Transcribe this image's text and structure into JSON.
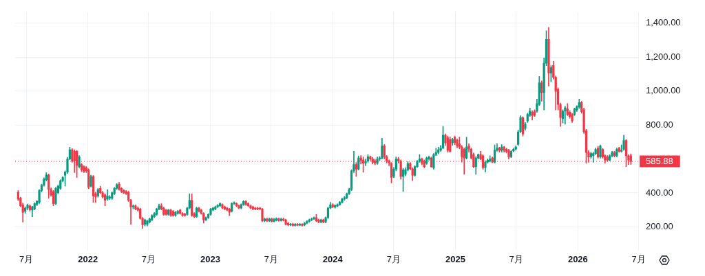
{
  "chart_data": {
    "type": "candlestick",
    "x": [
      "2021-06-07",
      "2021-06-14",
      "2021-06-21",
      "2021-06-28",
      "2021-07-05",
      "2021-07-12",
      "2021-07-19",
      "2021-07-26",
      "2021-08-02",
      "2021-08-09",
      "2021-08-16",
      "2021-08-23",
      "2021-08-30",
      "2021-09-06",
      "2021-09-13",
      "2021-09-20",
      "2021-09-27",
      "2021-10-04",
      "2021-10-11",
      "2021-10-18",
      "2021-10-25",
      "2021-11-01",
      "2021-11-08",
      "2021-11-15",
      "2021-11-22",
      "2021-11-29",
      "2021-12-06",
      "2021-12-13",
      "2021-12-20",
      "2021-12-27",
      "2022-01-03",
      "2022-01-10",
      "2022-01-17",
      "2022-01-24",
      "2022-01-31",
      "2022-02-07",
      "2022-02-14",
      "2022-02-21",
      "2022-02-28",
      "2022-03-07",
      "2022-03-14",
      "2022-03-21",
      "2022-03-28",
      "2022-04-04",
      "2022-04-11",
      "2022-04-18",
      "2022-04-25",
      "2022-05-02",
      "2022-05-09",
      "2022-05-16",
      "2022-05-23",
      "2022-05-30",
      "2022-06-06",
      "2022-06-13",
      "2022-06-20",
      "2022-06-27",
      "2022-07-04",
      "2022-07-11",
      "2022-07-18",
      "2022-07-25",
      "2022-08-01",
      "2022-08-08",
      "2022-08-15",
      "2022-08-22",
      "2022-08-29",
      "2022-09-05",
      "2022-09-12",
      "2022-09-19",
      "2022-09-26",
      "2022-10-03",
      "2022-10-10",
      "2022-10-17",
      "2022-10-24",
      "2022-10-31",
      "2022-11-07",
      "2022-11-14",
      "2022-11-21",
      "2022-11-28",
      "2022-12-05",
      "2022-12-12",
      "2022-12-19",
      "2022-12-26",
      "2023-01-02",
      "2023-01-09",
      "2023-01-16",
      "2023-01-23",
      "2023-01-30",
      "2023-02-06",
      "2023-02-13",
      "2023-02-20",
      "2023-02-27",
      "2023-03-06",
      "2023-03-13",
      "2023-03-20",
      "2023-03-27",
      "2023-04-03",
      "2023-04-10",
      "2023-04-17",
      "2023-04-24",
      "2023-05-01",
      "2023-05-08",
      "2023-05-15",
      "2023-05-22",
      "2023-05-29",
      "2023-06-05",
      "2023-06-12",
      "2023-06-19",
      "2023-06-26",
      "2023-07-03",
      "2023-07-10",
      "2023-07-17",
      "2023-07-24",
      "2023-07-31",
      "2023-08-07",
      "2023-08-14",
      "2023-08-21",
      "2023-08-28",
      "2023-09-04",
      "2023-09-11",
      "2023-09-18",
      "2023-09-25",
      "2023-10-02",
      "2023-10-09",
      "2023-10-16",
      "2023-10-23",
      "2023-10-30",
      "2023-11-06",
      "2023-11-13",
      "2023-11-20",
      "2023-11-27",
      "2023-12-04",
      "2023-12-11",
      "2023-12-18",
      "2023-12-25",
      "2024-01-01",
      "2024-01-08",
      "2024-01-15",
      "2024-01-22",
      "2024-01-29",
      "2024-02-05",
      "2024-02-12",
      "2024-02-19",
      "2024-02-26",
      "2024-03-04",
      "2024-03-11",
      "2024-03-18",
      "2024-03-25",
      "2024-04-01",
      "2024-04-08",
      "2024-04-15",
      "2024-04-22",
      "2024-04-29",
      "2024-05-06",
      "2024-05-13",
      "2024-05-20",
      "2024-05-27",
      "2024-06-03",
      "2024-06-10",
      "2024-06-17",
      "2024-06-24",
      "2024-07-01",
      "2024-07-08",
      "2024-07-15",
      "2024-07-22",
      "2024-07-29",
      "2024-08-05",
      "2024-08-12",
      "2024-08-19",
      "2024-08-26",
      "2024-09-02",
      "2024-09-09",
      "2024-09-16",
      "2024-09-23",
      "2024-09-30",
      "2024-10-07",
      "2024-10-14",
      "2024-10-21",
      "2024-10-28",
      "2024-11-04",
      "2024-11-11",
      "2024-11-18",
      "2024-11-25",
      "2024-12-02",
      "2024-12-09",
      "2024-12-16",
      "2024-12-23",
      "2024-12-30",
      "2025-01-06",
      "2025-01-13",
      "2025-01-20",
      "2025-01-27",
      "2025-02-03",
      "2025-02-10",
      "2025-02-17",
      "2025-02-24",
      "2025-03-03",
      "2025-03-10",
      "2025-03-17",
      "2025-03-24",
      "2025-03-31",
      "2025-04-07",
      "2025-04-14",
      "2025-04-21",
      "2025-04-28",
      "2025-05-05",
      "2025-05-12",
      "2025-05-19",
      "2025-05-26",
      "2025-06-02",
      "2025-06-09",
      "2025-06-16",
      "2025-06-23",
      "2025-06-30",
      "2025-07-07",
      "2025-07-14",
      "2025-07-21",
      "2025-07-28",
      "2025-08-04",
      "2025-08-11",
      "2025-08-18",
      "2025-08-25",
      "2025-09-01",
      "2025-09-08",
      "2025-09-15",
      "2025-09-22",
      "2025-09-29",
      "2025-10-06",
      "2025-10-13",
      "2025-10-20",
      "2025-10-27",
      "2025-11-03",
      "2025-11-10",
      "2025-11-17",
      "2025-11-24",
      "2025-12-01",
      "2025-12-08",
      "2025-12-15",
      "2025-12-22",
      "2025-12-29",
      "2026-01-05",
      "2026-01-12",
      "2026-01-19",
      "2026-01-26",
      "2026-02-02",
      "2026-02-09",
      "2026-02-16",
      "2026-02-23",
      "2026-03-02",
      "2026-03-09",
      "2026-03-16",
      "2026-03-23",
      "2026-03-30",
      "2026-04-06",
      "2026-04-13",
      "2026-04-20",
      "2026-04-27",
      "2026-05-04",
      "2026-05-11",
      "2026-05-18",
      "2026-05-25",
      "2026-06-01",
      "2026-06-08"
    ],
    "ohlc": [
      [
        404,
        414,
        355,
        363
      ],
      [
        369,
        375,
        318,
        324
      ],
      [
        330,
        340,
        228,
        286
      ],
      [
        292,
        318,
        280,
        311
      ],
      [
        311,
        335,
        300,
        327
      ],
      [
        324,
        330,
        292,
        301
      ],
      [
        299,
        322,
        260,
        318
      ],
      [
        305,
        342,
        300,
        337
      ],
      [
        331,
        356,
        325,
        350
      ],
      [
        344,
        420,
        338,
        414
      ],
      [
        414,
        452,
        405,
        446
      ],
      [
        446,
        490,
        440,
        481
      ],
      [
        478,
        519,
        470,
        506
      ],
      [
        506,
        512,
        369,
        420
      ],
      [
        420,
        430,
        380,
        388
      ],
      [
        408,
        415,
        324,
        337
      ],
      [
        337,
        433,
        330,
        427
      ],
      [
        401,
        446,
        395,
        440
      ],
      [
        427,
        478,
        420,
        472
      ],
      [
        472,
        497,
        465,
        491
      ],
      [
        504,
        530,
        440,
        523
      ],
      [
        523,
        610,
        515,
        600
      ],
      [
        600,
        670,
        595,
        655
      ],
      [
        655,
        662,
        580,
        587
      ],
      [
        645,
        655,
        520,
        590
      ],
      [
        645,
        650,
        491,
        562
      ],
      [
        555,
        620,
        548,
        613
      ],
      [
        568,
        575,
        525,
        536
      ],
      [
        555,
        560,
        520,
        527
      ],
      [
        549,
        555,
        520,
        530
      ],
      [
        536,
        542,
        425,
        433
      ],
      [
        440,
        505,
        435,
        497
      ],
      [
        497,
        503,
        344,
        382
      ],
      [
        395,
        405,
        344,
        376
      ],
      [
        382,
        426,
        375,
        420
      ],
      [
        427,
        440,
        395,
        401
      ],
      [
        401,
        410,
        370,
        376
      ],
      [
        388,
        395,
        324,
        356
      ],
      [
        363,
        420,
        356,
        382
      ],
      [
        369,
        385,
        360,
        376
      ],
      [
        369,
        406,
        362,
        401
      ],
      [
        395,
        432,
        390,
        427
      ],
      [
        427,
        455,
        420,
        449
      ],
      [
        452,
        462,
        415,
        420
      ],
      [
        427,
        432,
        402,
        408
      ],
      [
        414,
        420,
        396,
        401
      ],
      [
        408,
        414,
        390,
        395
      ],
      [
        404,
        410,
        350,
        356
      ],
      [
        356,
        362,
        215,
        318
      ],
      [
        318,
        330,
        305,
        324
      ],
      [
        324,
        330,
        300,
        305
      ],
      [
        311,
        318,
        292,
        299
      ],
      [
        305,
        311,
        245,
        250
      ],
      [
        250,
        256,
        190,
        212
      ],
      [
        215,
        246,
        205,
        241
      ],
      [
        215,
        240,
        205,
        235
      ],
      [
        228,
        252,
        222,
        247
      ],
      [
        241,
        272,
        236,
        267
      ],
      [
        260,
        284,
        255,
        279
      ],
      [
        273,
        310,
        268,
        305
      ],
      [
        305,
        335,
        300,
        324
      ],
      [
        324,
        337,
        300,
        305
      ],
      [
        311,
        316,
        268,
        273
      ],
      [
        299,
        304,
        268,
        273
      ],
      [
        273,
        304,
        268,
        299
      ],
      [
        299,
        304,
        262,
        267
      ],
      [
        292,
        297,
        262,
        267
      ],
      [
        267,
        291,
        262,
        286
      ],
      [
        279,
        297,
        274,
        292
      ],
      [
        299,
        304,
        274,
        279
      ],
      [
        279,
        284,
        262,
        267
      ],
      [
        276,
        281,
        262,
        267
      ],
      [
        273,
        316,
        268,
        311
      ],
      [
        311,
        395,
        306,
        356
      ],
      [
        356,
        395,
        262,
        267
      ],
      [
        279,
        284,
        255,
        260
      ],
      [
        260,
        316,
        255,
        311
      ],
      [
        311,
        316,
        287,
        292
      ],
      [
        299,
        304,
        274,
        279
      ],
      [
        279,
        284,
        222,
        241
      ],
      [
        241,
        259,
        236,
        254
      ],
      [
        254,
        278,
        249,
        273
      ],
      [
        273,
        310,
        268,
        305
      ],
      [
        299,
        316,
        294,
        311
      ],
      [
        305,
        323,
        300,
        318
      ],
      [
        318,
        332,
        313,
        327
      ],
      [
        324,
        342,
        319,
        337
      ],
      [
        331,
        336,
        306,
        311
      ],
      [
        318,
        323,
        300,
        305
      ],
      [
        311,
        316,
        294,
        299
      ],
      [
        305,
        310,
        266,
        286
      ],
      [
        292,
        342,
        287,
        337
      ],
      [
        337,
        348,
        332,
        343
      ],
      [
        337,
        342,
        319,
        324
      ],
      [
        324,
        329,
        306,
        311
      ],
      [
        311,
        336,
        306,
        331
      ],
      [
        331,
        355,
        326,
        350
      ],
      [
        350,
        355,
        326,
        331
      ],
      [
        337,
        342,
        319,
        324
      ],
      [
        324,
        329,
        306,
        311
      ],
      [
        318,
        323,
        300,
        305
      ],
      [
        311,
        316,
        300,
        305
      ],
      [
        311,
        316,
        300,
        305
      ],
      [
        311,
        316,
        300,
        305
      ],
      [
        305,
        310,
        230,
        235
      ],
      [
        235,
        252,
        230,
        247
      ],
      [
        247,
        252,
        230,
        235
      ],
      [
        235,
        252,
        230,
        247
      ],
      [
        247,
        252,
        228,
        232
      ],
      [
        232,
        250,
        228,
        244
      ],
      [
        238,
        254,
        234,
        248
      ],
      [
        248,
        252,
        232,
        237
      ],
      [
        237,
        252,
        233,
        246
      ],
      [
        246,
        252,
        234,
        239
      ],
      [
        241,
        246,
        210,
        215
      ],
      [
        222,
        226,
        206,
        211
      ],
      [
        211,
        221,
        206,
        217
      ],
      [
        217,
        222,
        204,
        208
      ],
      [
        208,
        220,
        204,
        216
      ],
      [
        216,
        220,
        206,
        210
      ],
      [
        210,
        220,
        206,
        216
      ],
      [
        216,
        220,
        204,
        208
      ],
      [
        211,
        227,
        206,
        222
      ],
      [
        222,
        237,
        217,
        232
      ],
      [
        232,
        246,
        227,
        241
      ],
      [
        241,
        252,
        236,
        247
      ],
      [
        247,
        259,
        242,
        254
      ],
      [
        254,
        273,
        230,
        235
      ],
      [
        241,
        246,
        223,
        228
      ],
      [
        228,
        246,
        223,
        241
      ],
      [
        241,
        246,
        223,
        228
      ],
      [
        228,
        259,
        223,
        254
      ],
      [
        254,
        316,
        249,
        311
      ],
      [
        311,
        345,
        306,
        330
      ],
      [
        330,
        337,
        312,
        318
      ],
      [
        316,
        330,
        310,
        326
      ],
      [
        322,
        336,
        318,
        331
      ],
      [
        331,
        350,
        326,
        345
      ],
      [
        345,
        370,
        340,
        363
      ],
      [
        363,
        380,
        356,
        372
      ],
      [
        372,
        400,
        365,
        395
      ],
      [
        395,
        428,
        390,
        420
      ],
      [
        420,
        536,
        414,
        530
      ],
      [
        530,
        645,
        520,
        568
      ],
      [
        568,
        580,
        497,
        540
      ],
      [
        540,
        618,
        535,
        606
      ],
      [
        606,
        620,
        570,
        590
      ],
      [
        595,
        612,
        522,
        575
      ],
      [
        575,
        600,
        560,
        587
      ],
      [
        587,
        625,
        580,
        613
      ],
      [
        613,
        618,
        590,
        600
      ],
      [
        600,
        610,
        570,
        580
      ],
      [
        590,
        600,
        565,
        574
      ],
      [
        574,
        612,
        568,
        600
      ],
      [
        600,
        615,
        590,
        606
      ],
      [
        606,
        722,
        600,
        677
      ],
      [
        677,
        685,
        600,
        613
      ],
      [
        613,
        620,
        575,
        587
      ],
      [
        587,
        595,
        560,
        574
      ],
      [
        574,
        580,
        459,
        491
      ],
      [
        497,
        550,
        490,
        540
      ],
      [
        540,
        612,
        530,
        600
      ],
      [
        600,
        610,
        575,
        587
      ],
      [
        587,
        595,
        480,
        497
      ],
      [
        497,
        545,
        408,
        536
      ],
      [
        510,
        548,
        500,
        536
      ],
      [
        536,
        585,
        530,
        574
      ],
      [
        574,
        580,
        535,
        542
      ],
      [
        542,
        548,
        472,
        504
      ],
      [
        504,
        560,
        498,
        555
      ],
      [
        555,
        592,
        550,
        587
      ],
      [
        587,
        626,
        580,
        600
      ],
      [
        600,
        606,
        565,
        574
      ],
      [
        587,
        595,
        548,
        555
      ],
      [
        574,
        612,
        568,
        606
      ],
      [
        600,
        618,
        592,
        610
      ],
      [
        606,
        612,
        550,
        555
      ],
      [
        548,
        632,
        540,
        626
      ],
      [
        626,
        664,
        620,
        638
      ],
      [
        638,
        670,
        630,
        655
      ],
      [
        651,
        680,
        645,
        664
      ],
      [
        664,
        792,
        660,
        741
      ],
      [
        741,
        748,
        680,
        696
      ],
      [
        725,
        735,
        640,
        651
      ],
      [
        715,
        730,
        640,
        645
      ],
      [
        696,
        722,
        680,
        715
      ],
      [
        728,
        735,
        685,
        696
      ],
      [
        710,
        718,
        665,
        677
      ],
      [
        690,
        728,
        660,
        670
      ],
      [
        671,
        680,
        581,
        613
      ],
      [
        658,
        665,
        510,
        606
      ],
      [
        606,
        728,
        600,
        671
      ],
      [
        677,
        690,
        640,
        658
      ],
      [
        658,
        665,
        600,
        606
      ],
      [
        626,
        635,
        548,
        555
      ],
      [
        555,
        615,
        510,
        606
      ],
      [
        606,
        630,
        600,
        626
      ],
      [
        626,
        645,
        595,
        600
      ],
      [
        619,
        625,
        540,
        549
      ],
      [
        549,
        590,
        523,
        581
      ],
      [
        581,
        600,
        575,
        594
      ],
      [
        587,
        619,
        582,
        600
      ],
      [
        606,
        612,
        578,
        581
      ],
      [
        581,
        683,
        575,
        651
      ],
      [
        651,
        690,
        645,
        664
      ],
      [
        664,
        670,
        640,
        651
      ],
      [
        651,
        685,
        640,
        671
      ],
      [
        671,
        675,
        640,
        651
      ],
      [
        658,
        664,
        635,
        645
      ],
      [
        651,
        658,
        600,
        613
      ],
      [
        613,
        650,
        608,
        645
      ],
      [
        648,
        664,
        642,
        658
      ],
      [
        658,
        678,
        652,
        671
      ],
      [
        686,
        770,
        680,
        760
      ],
      [
        760,
        855,
        755,
        844
      ],
      [
        844,
        850,
        735,
        747
      ],
      [
        780,
        815,
        770,
        805
      ],
      [
        824,
        870,
        815,
        863
      ],
      [
        857,
        900,
        850,
        882
      ],
      [
        876,
        885,
        830,
        857
      ],
      [
        882,
        890,
        850,
        857
      ],
      [
        882,
        953,
        875,
        927
      ],
      [
        921,
        1087,
        915,
        1049
      ],
      [
        1049,
        1060,
        940,
        991
      ],
      [
        991,
        1196,
        889,
        1164
      ],
      [
        1164,
        1356,
        1150,
        1305
      ],
      [
        1305,
        1376,
        1030,
        1106
      ],
      [
        1106,
        1150,
        1055,
        1139
      ],
      [
        1151,
        1176,
        1070,
        1081
      ],
      [
        1081,
        1090,
        889,
        998
      ],
      [
        1010,
        1020,
        889,
        921
      ],
      [
        921,
        930,
        792,
        844
      ],
      [
        837,
        890,
        812,
        882
      ],
      [
        882,
        910,
        805,
        901
      ],
      [
        895,
        927,
        855,
        863
      ],
      [
        876,
        885,
        840,
        850
      ],
      [
        863,
        870,
        815,
        824
      ],
      [
        863,
        900,
        855,
        895
      ],
      [
        889,
        915,
        880,
        908
      ],
      [
        905,
        953,
        898,
        933
      ],
      [
        933,
        940,
        870,
        880
      ],
      [
        890,
        900,
        750,
        760
      ],
      [
        766,
        775,
        574,
        638
      ],
      [
        638,
        650,
        580,
        612
      ],
      [
        612,
        640,
        605,
        632
      ],
      [
        620,
        640,
        580,
        632
      ],
      [
        632,
        665,
        625,
        657
      ],
      [
        664,
        675,
        605,
        612
      ],
      [
        612,
        683,
        605,
        677
      ],
      [
        657,
        662,
        605,
        612
      ],
      [
        619,
        625,
        574,
        593
      ],
      [
        612,
        620,
        585,
        593
      ],
      [
        593,
        625,
        588,
        619
      ],
      [
        619,
        645,
        612,
        638
      ],
      [
        638,
        645,
        612,
        619
      ],
      [
        619,
        665,
        612,
        657
      ],
      [
        664,
        670,
        640,
        645
      ],
      [
        645,
        683,
        640,
        651
      ],
      [
        657,
        741,
        650,
        709
      ],
      [
        709,
        715,
        555,
        619
      ],
      [
        619,
        625,
        567,
        593
      ],
      [
        619,
        630,
        568,
        585.88
      ]
    ],
    "colors": [
      "#f23645",
      "#f23645",
      "#f23645",
      "#089981",
      "#089981",
      "#f23645",
      "#089981",
      "#089981",
      "#089981",
      "#089981",
      "#089981",
      "#089981",
      "#089981",
      "#f23645",
      "#f23645",
      "#f23645",
      "#089981",
      "#089981",
      "#089981",
      "#089981",
      "#089981",
      "#089981",
      "#089981",
      "#f23645",
      "#f23645",
      "#f23645",
      "#089981",
      "#f23645",
      "#f23645",
      "#f23645",
      "#f23645",
      "#089981",
      "#f23645",
      "#f23645",
      "#089981",
      "#f23645",
      "#f23645",
      "#f23645",
      "#089981",
      "#089981",
      "#089981",
      "#089981",
      "#089981",
      "#f23645",
      "#f23645",
      "#f23645",
      "#f23645",
      "#f23645",
      "#f23645",
      "#089981",
      "#f23645",
      "#f23645",
      "#f23645",
      "#f23645",
      "#089981",
      "#089981",
      "#089981",
      "#089981",
      "#089981",
      "#089981",
      "#089981",
      "#f23645",
      "#f23645",
      "#f23645",
      "#089981",
      "#f23645",
      "#f23645",
      "#089981",
      "#089981",
      "#f23645",
      "#f23645",
      "#f23645",
      "#089981",
      "#089981",
      "#f23645",
      "#f23645",
      "#089981",
      "#f23645",
      "#f23645",
      "#f23645",
      "#089981",
      "#089981",
      "#089981",
      "#089981",
      "#089981",
      "#089981",
      "#089981",
      "#f23645",
      "#f23645",
      "#f23645",
      "#f23645",
      "#089981",
      "#089981",
      "#f23645",
      "#f23645",
      "#089981",
      "#089981",
      "#f23645",
      "#f23645",
      "#f23645",
      "#f23645",
      "#f23645",
      "#f23645",
      "#f23645",
      "#f23645",
      "#089981",
      "#f23645",
      "#089981",
      "#f23645",
      "#089981",
      "#089981",
      "#f23645",
      "#089981",
      "#f23645",
      "#f23645",
      "#f23645",
      "#089981",
      "#f23645",
      "#089981",
      "#f23645",
      "#089981",
      "#f23645",
      "#089981",
      "#089981",
      "#089981",
      "#089981",
      "#089981",
      "#f23645",
      "#f23645",
      "#089981",
      "#f23645",
      "#089981",
      "#089981",
      "#089981",
      "#f23645",
      "#089981",
      "#089981",
      "#089981",
      "#089981",
      "#089981",
      "#089981",
      "#089981",
      "#089981",
      "#089981",
      "#f23645",
      "#089981",
      "#f23645",
      "#f23645",
      "#089981",
      "#089981",
      "#f23645",
      "#f23645",
      "#f23645",
      "#089981",
      "#089981",
      "#089981",
      "#f23645",
      "#f23645",
      "#f23645",
      "#f23645",
      "#089981",
      "#089981",
      "#f23645",
      "#f23645",
      "#089981",
      "#089981",
      "#089981",
      "#f23645",
      "#f23645",
      "#089981",
      "#089981",
      "#089981",
      "#f23645",
      "#f23645",
      "#089981",
      "#089981",
      "#f23645",
      "#089981",
      "#089981",
      "#089981",
      "#089981",
      "#089981",
      "#f23645",
      "#f23645",
      "#f23645",
      "#089981",
      "#f23645",
      "#f23645",
      "#f23645",
      "#f23645",
      "#f23645",
      "#089981",
      "#f23645",
      "#f23645",
      "#f23645",
      "#089981",
      "#089981",
      "#f23645",
      "#f23645",
      "#089981",
      "#089981",
      "#089981",
      "#f23645",
      "#089981",
      "#089981",
      "#f23645",
      "#089981",
      "#f23645",
      "#f23645",
      "#f23645",
      "#089981",
      "#089981",
      "#089981",
      "#089981",
      "#089981",
      "#f23645",
      "#089981",
      "#089981",
      "#089981",
      "#f23645",
      "#f23645",
      "#089981",
      "#089981",
      "#f23645",
      "#089981",
      "#089981",
      "#f23645",
      "#089981",
      "#f23645",
      "#f23645",
      "#f23645",
      "#f23645",
      "#089981",
      "#089981",
      "#f23645",
      "#f23645",
      "#f23645",
      "#089981",
      "#089981",
      "#089981",
      "#f23645",
      "#f23645",
      "#f23645",
      "#f23645",
      "#089981",
      "#089981",
      "#089981",
      "#f23645",
      "#089981",
      "#f23645",
      "#f23645",
      "#f23645",
      "#089981",
      "#089981",
      "#f23645",
      "#089981",
      "#f23645",
      "#089981",
      "#089981",
      "#f23645",
      "#f23645",
      "#f23645"
    ],
    "xlim": [
      "2021-05-29",
      "2026-07-02"
    ],
    "xticks": [
      {
        "value": "2021-07",
        "label": "7月"
      },
      {
        "value": "2022",
        "label": "2022"
      },
      {
        "value": "2022-07",
        "label": "7月"
      },
      {
        "value": "2023",
        "label": "2023"
      },
      {
        "value": "2023-07",
        "label": "7月"
      },
      {
        "value": "2024",
        "label": "2024"
      },
      {
        "value": "2024-07",
        "label": "7月"
      },
      {
        "value": "2025",
        "label": "2025"
      },
      {
        "value": "2025-07",
        "label": "7月"
      },
      {
        "value": "2026",
        "label": "2026"
      },
      {
        "value": "2026-07",
        "label": "7月"
      }
    ],
    "ylim": [
      60,
      1465
    ],
    "yticks": [
      {
        "value": 200,
        "label": "200.00"
      },
      {
        "value": 400,
        "label": "400.00"
      },
      {
        "value": 800,
        "label": "800.00"
      },
      {
        "value": 1000,
        "label": "1,000.00"
      },
      {
        "value": 1200,
        "label": "1,200.00"
      },
      {
        "value": 1400,
        "label": "1,400.00"
      }
    ],
    "grid": true,
    "ref_lines": [
      {
        "axis": "y",
        "value": 585.88,
        "label": "585.88",
        "color": "#f23645",
        "line_style": "dotted"
      }
    ]
  }
}
